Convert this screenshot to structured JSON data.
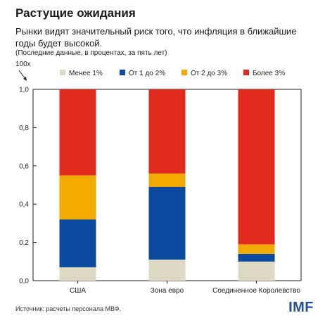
{
  "header": {
    "title": "Растущие ожидания",
    "subtitle": "Рынки видят значительный риск того, что инфляция в ближайшие годы будет высокой.",
    "note": "(Последние данные, в процентах, за пять лет)"
  },
  "footer": {
    "source": "Источник: расчеты персонала  МВФ.",
    "logo": "IMF"
  },
  "chart_data": {
    "type": "bar",
    "stacked": true,
    "unit_label": "100x",
    "categories": [
      "США",
      "Зона евро",
      "Соединенное Королевство"
    ],
    "series": [
      {
        "name": "Менее 1%",
        "color": "#ddd9c3",
        "values": [
          0.07,
          0.11,
          0.1
        ]
      },
      {
        "name": "От 1 до 2%",
        "color": "#0b4a9e",
        "values": [
          0.25,
          0.38,
          0.04
        ]
      },
      {
        "name": "От 2 до 3%",
        "color": "#f0aa00",
        "values": [
          0.23,
          0.07,
          0.05
        ]
      },
      {
        "name": "Более 3%",
        "color": "#e12b1e",
        "values": [
          0.45,
          0.44,
          0.81
        ]
      }
    ],
    "ylim": [
      0,
      1.0
    ],
    "yticks": [
      "0,0",
      "0,2",
      "0,4",
      "0,6",
      "0,8",
      "1,0"
    ],
    "ytick_values": [
      0,
      0.2,
      0.4,
      0.6,
      0.8,
      1.0
    ],
    "legend_position": "top",
    "grid": false
  }
}
